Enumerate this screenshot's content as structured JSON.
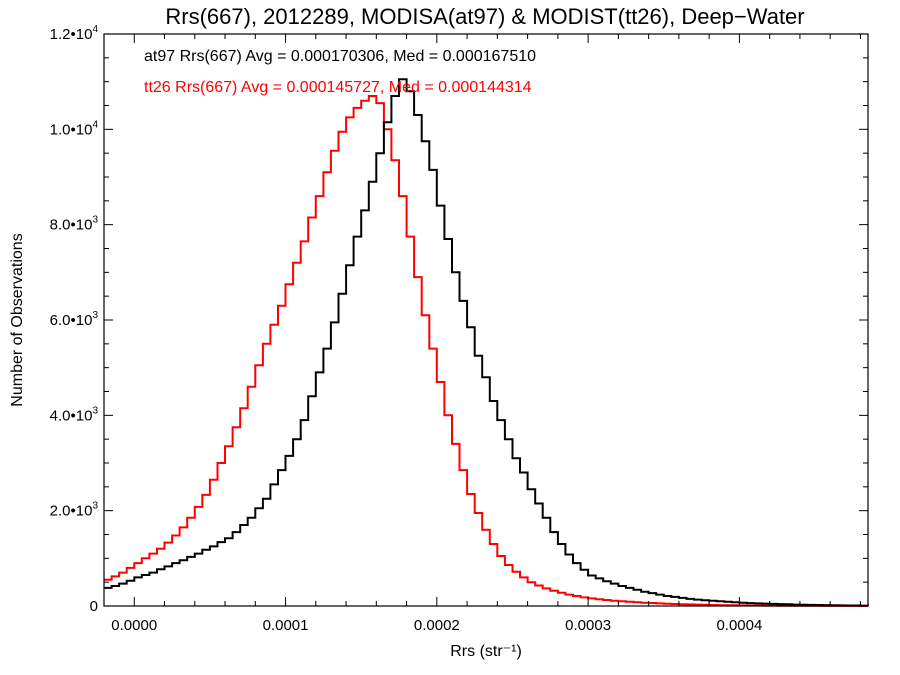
{
  "chart_data": {
    "type": "line",
    "title": "Rrs(667), 2012289, MODISA(at97) & MODIST(tt26), Deep−Water",
    "xlabel": "Rrs (str⁻¹)",
    "ylabel": "Number of Observations",
    "xlim": [
      -2e-05,
      0.000485
    ],
    "ylim": [
      0,
      12000
    ],
    "grid": false,
    "x_ticks": [
      0.0,
      0.0001,
      0.0002,
      0.0003,
      0.0004
    ],
    "x_tick_labels": [
      "0.0000",
      "0.0001",
      "0.0002",
      "0.0003",
      "0.0004"
    ],
    "y_ticks": [
      0,
      2000,
      4000,
      6000,
      8000,
      10000,
      12000
    ],
    "y_tick_labels": [
      {
        "base": "0",
        "exp": ""
      },
      {
        "base": "2.0•10",
        "exp": "3"
      },
      {
        "base": "4.0•10",
        "exp": "3"
      },
      {
        "base": "6.0•10",
        "exp": "3"
      },
      {
        "base": "8.0•10",
        "exp": "3"
      },
      {
        "base": "1.0•10",
        "exp": "4"
      },
      {
        "base": "1.2•10",
        "exp": "4"
      }
    ],
    "annotations": [
      {
        "text": "at97 Rrs(667) Avg = 0.000170306, Med = 0.000167510",
        "color": "#000000"
      },
      {
        "text": "tt26 Rrs(667) Avg = 0.000145727, Med = 0.000144314",
        "color": "#ff0000"
      }
    ],
    "series": [
      {
        "name": "at97",
        "color": "#000000",
        "points": [
          [
            -2e-05,
            380
          ],
          [
            -1.5e-05,
            420
          ],
          [
            -1e-05,
            470
          ],
          [
            -5e-06,
            530
          ],
          [
            0.0,
            600
          ],
          [
            5e-06,
            650
          ],
          [
            1e-05,
            700
          ],
          [
            1.5e-05,
            770
          ],
          [
            2e-05,
            830
          ],
          [
            2.5e-05,
            900
          ],
          [
            3e-05,
            960
          ],
          [
            3.5e-05,
            1030
          ],
          [
            4e-05,
            1100
          ],
          [
            4.5e-05,
            1180
          ],
          [
            5e-05,
            1250
          ],
          [
            5.5e-05,
            1340
          ],
          [
            6e-05,
            1420
          ],
          [
            6.5e-05,
            1550
          ],
          [
            7e-05,
            1700
          ],
          [
            7.5e-05,
            1850
          ],
          [
            8e-05,
            2050
          ],
          [
            8.5e-05,
            2250
          ],
          [
            9e-05,
            2550
          ],
          [
            9.5e-05,
            2850
          ],
          [
            0.0001,
            3150
          ],
          [
            0.000105,
            3500
          ],
          [
            0.00011,
            3900
          ],
          [
            0.000115,
            4400
          ],
          [
            0.00012,
            4900
          ],
          [
            0.000125,
            5400
          ],
          [
            0.00013,
            5950
          ],
          [
            0.000135,
            6550
          ],
          [
            0.00014,
            7150
          ],
          [
            0.000145,
            7750
          ],
          [
            0.00015,
            8300
          ],
          [
            0.000155,
            8900
          ],
          [
            0.00016,
            9500
          ],
          [
            0.000165,
            10150
          ],
          [
            0.00017,
            10700
          ],
          [
            0.000175,
            11050
          ],
          [
            0.00018,
            10800
          ],
          [
            0.000185,
            10300
          ],
          [
            0.00019,
            9750
          ],
          [
            0.000195,
            9150
          ],
          [
            0.0002,
            8400
          ],
          [
            0.000205,
            7700
          ],
          [
            0.00021,
            7000
          ],
          [
            0.000215,
            6400
          ],
          [
            0.00022,
            5850
          ],
          [
            0.000225,
            5250
          ],
          [
            0.00023,
            4800
          ],
          [
            0.000235,
            4300
          ],
          [
            0.00024,
            3900
          ],
          [
            0.000245,
            3500
          ],
          [
            0.00025,
            3100
          ],
          [
            0.000255,
            2800
          ],
          [
            0.00026,
            2450
          ],
          [
            0.000265,
            2150
          ],
          [
            0.00027,
            1850
          ],
          [
            0.000275,
            1550
          ],
          [
            0.00028,
            1300
          ],
          [
            0.000285,
            1080
          ],
          [
            0.00029,
            900
          ],
          [
            0.000295,
            760
          ],
          [
            0.0003,
            640
          ],
          [
            0.000305,
            580
          ],
          [
            0.00031,
            520
          ],
          [
            0.000315,
            470
          ],
          [
            0.00032,
            420
          ],
          [
            0.000325,
            380
          ],
          [
            0.00033,
            340
          ],
          [
            0.000335,
            300
          ],
          [
            0.00034,
            270
          ],
          [
            0.000345,
            240
          ],
          [
            0.00035,
            210
          ],
          [
            0.000355,
            190
          ],
          [
            0.00036,
            170
          ],
          [
            0.000365,
            150
          ],
          [
            0.00037,
            135
          ],
          [
            0.000375,
            120
          ],
          [
            0.00038,
            110
          ],
          [
            0.000385,
            100
          ],
          [
            0.00039,
            90
          ],
          [
            0.000395,
            80
          ],
          [
            0.0004,
            70
          ],
          [
            0.000405,
            60
          ],
          [
            0.00041,
            55
          ],
          [
            0.000415,
            50
          ],
          [
            0.00042,
            45
          ],
          [
            0.000425,
            40
          ],
          [
            0.00043,
            35
          ],
          [
            0.000435,
            30
          ],
          [
            0.00044,
            27
          ],
          [
            0.000445,
            24
          ],
          [
            0.00045,
            20
          ],
          [
            0.000455,
            18
          ],
          [
            0.00046,
            15
          ],
          [
            0.000465,
            13
          ],
          [
            0.00047,
            11
          ],
          [
            0.000475,
            10
          ],
          [
            0.00048,
            8
          ],
          [
            0.000485,
            7
          ]
        ]
      },
      {
        "name": "tt26",
        "color": "#ff0000",
        "points": [
          [
            -2e-05,
            550
          ],
          [
            -1.5e-05,
            620
          ],
          [
            -1e-05,
            700
          ],
          [
            -5e-06,
            800
          ],
          [
            0.0,
            900
          ],
          [
            5e-06,
            1000
          ],
          [
            1e-05,
            1100
          ],
          [
            1.5e-05,
            1200
          ],
          [
            2e-05,
            1330
          ],
          [
            2.5e-05,
            1480
          ],
          [
            3e-05,
            1650
          ],
          [
            3.5e-05,
            1850
          ],
          [
            4e-05,
            2080
          ],
          [
            4.5e-05,
            2330
          ],
          [
            5e-05,
            2650
          ],
          [
            5.5e-05,
            3000
          ],
          [
            6e-05,
            3350
          ],
          [
            6.5e-05,
            3750
          ],
          [
            7e-05,
            4150
          ],
          [
            7.5e-05,
            4600
          ],
          [
            8e-05,
            5050
          ],
          [
            8.5e-05,
            5500
          ],
          [
            9e-05,
            5900
          ],
          [
            9.5e-05,
            6300
          ],
          [
            0.0001,
            6750
          ],
          [
            0.000105,
            7200
          ],
          [
            0.00011,
            7650
          ],
          [
            0.000115,
            8150
          ],
          [
            0.00012,
            8600
          ],
          [
            0.000125,
            9100
          ],
          [
            0.00013,
            9550
          ],
          [
            0.000135,
            9950
          ],
          [
            0.00014,
            10250
          ],
          [
            0.000145,
            10450
          ],
          [
            0.00015,
            10600
          ],
          [
            0.000155,
            10700
          ],
          [
            0.00016,
            10550
          ],
          [
            0.000165,
            10000
          ],
          [
            0.00017,
            9350
          ],
          [
            0.000175,
            8600
          ],
          [
            0.00018,
            7750
          ],
          [
            0.000185,
            6900
          ],
          [
            0.00019,
            6100
          ],
          [
            0.000195,
            5400
          ],
          [
            0.0002,
            4700
          ],
          [
            0.000205,
            4000
          ],
          [
            0.00021,
            3400
          ],
          [
            0.000215,
            2850
          ],
          [
            0.00022,
            2350
          ],
          [
            0.000225,
            1950
          ],
          [
            0.00023,
            1600
          ],
          [
            0.000235,
            1300
          ],
          [
            0.00024,
            1050
          ],
          [
            0.000245,
            860
          ],
          [
            0.00025,
            720
          ],
          [
            0.000255,
            600
          ],
          [
            0.00026,
            500
          ],
          [
            0.000265,
            430
          ],
          [
            0.00027,
            370
          ],
          [
            0.000275,
            320
          ],
          [
            0.00028,
            280
          ],
          [
            0.000285,
            240
          ],
          [
            0.00029,
            210
          ],
          [
            0.000295,
            180
          ],
          [
            0.0003,
            160
          ],
          [
            0.000305,
            140
          ],
          [
            0.00031,
            125
          ],
          [
            0.000315,
            110
          ],
          [
            0.00032,
            100
          ],
          [
            0.000325,
            90
          ],
          [
            0.00033,
            80
          ],
          [
            0.000335,
            70
          ],
          [
            0.00034,
            62
          ],
          [
            0.000345,
            55
          ],
          [
            0.00035,
            48
          ],
          [
            0.000355,
            42
          ],
          [
            0.00036,
            37
          ],
          [
            0.000365,
            33
          ],
          [
            0.00037,
            29
          ],
          [
            0.000375,
            25
          ],
          [
            0.00038,
            22
          ],
          [
            0.000385,
            19
          ],
          [
            0.00039,
            17
          ],
          [
            0.000395,
            15
          ],
          [
            0.0004,
            13
          ],
          [
            0.000405,
            11
          ],
          [
            0.00041,
            10
          ],
          [
            0.000415,
            9
          ],
          [
            0.00042,
            8
          ],
          [
            0.000425,
            7
          ],
          [
            0.00043,
            6
          ],
          [
            0.000435,
            5
          ],
          [
            0.00044,
            5
          ],
          [
            0.000445,
            4
          ],
          [
            0.00045,
            4
          ],
          [
            0.000455,
            3
          ],
          [
            0.00046,
            3
          ],
          [
            0.000465,
            2
          ],
          [
            0.00047,
            2
          ],
          [
            0.000475,
            2
          ],
          [
            0.00048,
            1
          ],
          [
            0.000485,
            1
          ]
        ]
      }
    ]
  }
}
